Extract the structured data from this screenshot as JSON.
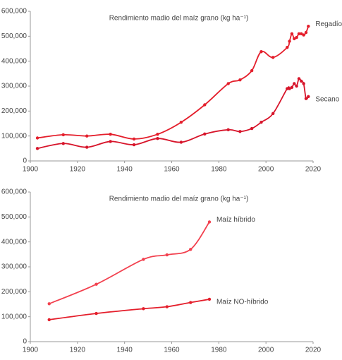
{
  "chart_data": [
    {
      "type": "line",
      "title": "Rendimiento madio del maíz grano (kg ha⁻¹)",
      "xlim": [
        1900,
        2020
      ],
      "xticks": [
        1900,
        1920,
        1940,
        1960,
        1980,
        2000,
        2020
      ],
      "ylim": [
        0,
        600000
      ],
      "yticks": [
        0,
        {
          "value": 100000,
          "label": "100,000"
        },
        {
          "value": 200000,
          "label": "200,000"
        },
        {
          "value": 300000,
          "label": "300,000"
        },
        {
          "value": 400000,
          "label": "400,000"
        },
        {
          "value": 500000,
          "label": "500,000"
        },
        {
          "value": 600000,
          "label": "600,000"
        }
      ],
      "grid": false,
      "series": [
        {
          "name": "Regadío",
          "color": "#e41e2b",
          "x": [
            1903,
            1914,
            1924,
            1934,
            1944,
            1954,
            1964,
            1974,
            1984,
            1989,
            1994,
            1998,
            2003,
            2009,
            2010,
            2011,
            2012,
            2013,
            2014,
            2015,
            2016,
            2017,
            2018
          ],
          "values": [
            92000,
            105000,
            100000,
            107000,
            88000,
            107000,
            155000,
            225000,
            310000,
            325000,
            362000,
            438000,
            415000,
            455000,
            480000,
            510000,
            490000,
            495000,
            510000,
            510000,
            505000,
            515000,
            540000
          ]
        },
        {
          "name": "Secano",
          "color": "#d7142a",
          "x": [
            1903,
            1914,
            1924,
            1934,
            1944,
            1954,
            1964,
            1974,
            1984,
            1989,
            1994,
            1998,
            2003,
            2009,
            2010,
            2011,
            2012,
            2013,
            2014,
            2015,
            2016,
            2017,
            2018
          ],
          "values": [
            50000,
            70000,
            55000,
            78000,
            65000,
            90000,
            75000,
            108000,
            125000,
            118000,
            130000,
            155000,
            190000,
            290000,
            290000,
            295000,
            310000,
            300000,
            330000,
            320000,
            310000,
            250000,
            258000
          ]
        }
      ]
    },
    {
      "type": "line",
      "title": "Rendimiento madio del maíz grano (kg ha⁻¹)",
      "xlim": [
        1900,
        2020
      ],
      "xticks": [
        1900,
        1920,
        1940,
        1960,
        1980,
        2000,
        2020
      ],
      "ylim": [
        0,
        600000
      ],
      "yticks": [
        0,
        {
          "value": 100000,
          "label": "100,000"
        },
        {
          "value": 200000,
          "label": "200,000"
        },
        {
          "value": 300000,
          "label": "300,000"
        },
        {
          "value": 400000,
          "label": "400,000"
        },
        {
          "value": 500000,
          "label": "500,000"
        },
        {
          "value": 600000,
          "label": "600,000"
        }
      ],
      "grid": false,
      "series": [
        {
          "name": "Maíz híbrido",
          "color": "#f2404e",
          "x": [
            1908,
            1928,
            1948,
            1958,
            1968,
            1976
          ],
          "values": [
            152000,
            230000,
            330000,
            348000,
            370000,
            480000
          ]
        },
        {
          "name": "Maíz NO-híbrido",
          "color": "#e41e2b",
          "x": [
            1908,
            1928,
            1948,
            1958,
            1968,
            1976
          ],
          "values": [
            88000,
            113000,
            132000,
            140000,
            157000,
            170000
          ]
        }
      ]
    }
  ]
}
